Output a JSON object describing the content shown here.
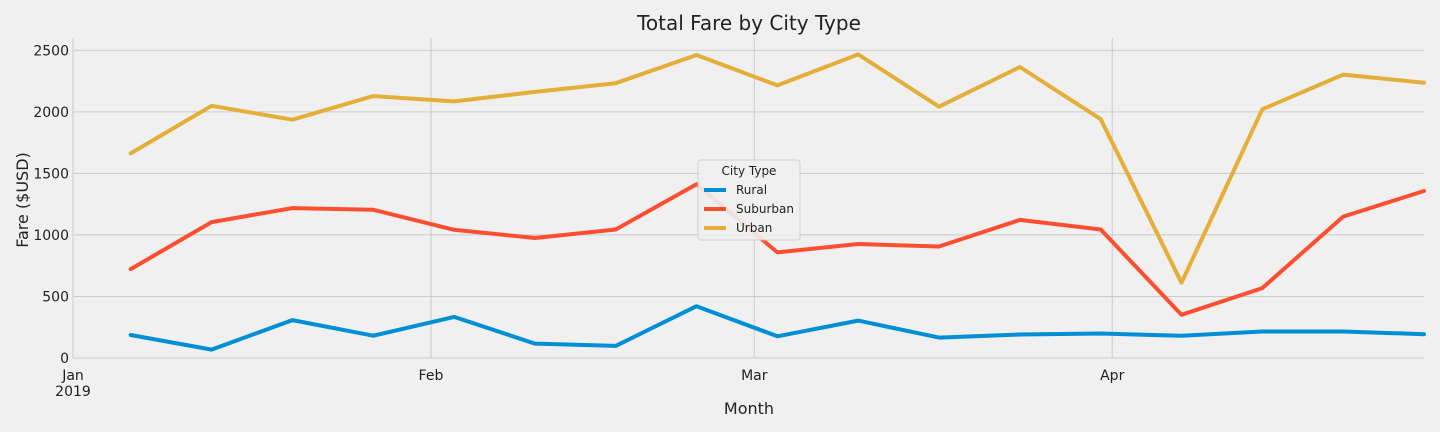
{
  "chart_data": {
    "type": "line",
    "title": "Total Fare by City Type",
    "xlabel": "Month",
    "ylabel": "Fare ($USD)",
    "ylim": [
      0,
      2600
    ],
    "y_ticks": [
      0,
      500,
      1000,
      1500,
      2000,
      2500
    ],
    "x": [
      "2019-01-06",
      "2019-01-13",
      "2019-01-20",
      "2019-01-27",
      "2019-02-03",
      "2019-02-10",
      "2019-02-17",
      "2019-02-24",
      "2019-03-03",
      "2019-03-10",
      "2019-03-17",
      "2019-03-24",
      "2019-03-31",
      "2019-04-07",
      "2019-04-14",
      "2019-04-21",
      "2019-04-28"
    ],
    "x_ticks": [
      {
        "date": "2019-01-01",
        "label": "Jan",
        "sublabel": "2019"
      },
      {
        "date": "2019-02-01",
        "label": "Feb",
        "sublabel": ""
      },
      {
        "date": "2019-03-01",
        "label": "Mar",
        "sublabel": ""
      },
      {
        "date": "2019-04-01",
        "label": "Apr",
        "sublabel": ""
      }
    ],
    "legend": {
      "title": "City Type",
      "placement": "center"
    },
    "grid": true,
    "series": [
      {
        "name": "Rural",
        "color": "#008fd5",
        "values": [
          187,
          68,
          308,
          181,
          334,
          117,
          98,
          421,
          176,
          304,
          166,
          191,
          199,
          180,
          215,
          215,
          193
        ]
      },
      {
        "name": "Suburban",
        "color": "#fc4f30",
        "values": [
          722,
          1104,
          1218,
          1204,
          1042,
          975,
          1044,
          1412,
          858,
          926,
          906,
          1122,
          1044,
          351,
          568,
          1149,
          1357
        ]
      },
      {
        "name": "Urban",
        "color": "#e5ae38",
        "values": [
          1662,
          2049,
          1936,
          2128,
          2085,
          2162,
          2233,
          2462,
          2215,
          2467,
          2042,
          2364,
          1940,
          612,
          2021,
          2303,
          2237
        ]
      }
    ]
  }
}
